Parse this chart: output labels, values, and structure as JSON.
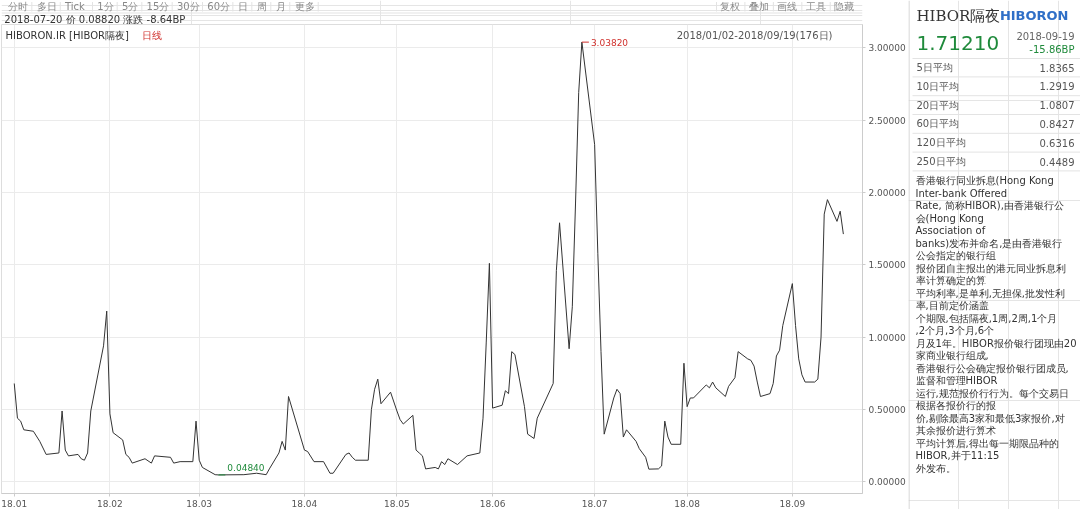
{
  "chart_data": [
    {
      "type": "other",
      "annotations": [
        "分时",
        "多日",
        "Tick",
        "1分",
        "5分",
        "15分",
        "30分",
        "60分",
        "日",
        "周",
        "月",
        "更多",
        "复权",
        "叠加",
        "画线",
        "工具",
        "隐藏"
      ]
    },
    {
      "type": "line",
      "title": "HIBORON.IR [HIBOR隔夜]",
      "subtitle": "2018-07-20 价 0.08820 涨跌 -8.64BP",
      "color": "#333333",
      "x": [
        "2018-01-02",
        "2018-01-03",
        "2018-01-04",
        "2018-01-05",
        "2018-01-08",
        "2018-01-10",
        "2018-01-12",
        "2018-01-16",
        "2018-01-17",
        "2018-01-18",
        "2018-01-19",
        "2018-01-22",
        "2018-01-23",
        "2018-01-24",
        "2018-01-25",
        "2018-01-26",
        "2018-01-30",
        "2018-01-31",
        "2018-02-01",
        "2018-02-02",
        "2018-02-05",
        "2018-02-06",
        "2018-02-07",
        "2018-02-08",
        "2018-02-12",
        "2018-02-14",
        "2018-02-15",
        "2018-02-20",
        "2018-02-21",
        "2018-02-23",
        "2018-02-27",
        "2018-02-28",
        "2018-03-01",
        "2018-03-02",
        "2018-03-06",
        "2018-03-07",
        "2018-03-15",
        "2018-03-19",
        "2018-03-22",
        "2018-03-23",
        "2018-03-26",
        "2018-03-27",
        "2018-03-28",
        "2018-03-29",
        "2018-04-03",
        "2018-04-04",
        "2018-04-06",
        "2018-04-09",
        "2018-04-11",
        "2018-04-12",
        "2018-04-16",
        "2018-04-17",
        "2018-04-18",
        "2018-04-19",
        "2018-04-23",
        "2018-04-24",
        "2018-04-25",
        "2018-04-26",
        "2018-04-27",
        "2018-04-30",
        "2018-05-02",
        "2018-05-03",
        "2018-05-04",
        "2018-05-07",
        "2018-05-08",
        "2018-05-09",
        "2018-05-10",
        "2018-05-11",
        "2018-05-14",
        "2018-05-15",
        "2018-05-16",
        "2018-05-17",
        "2018-05-18",
        "2018-05-21",
        "2018-05-24",
        "2018-05-28",
        "2018-05-29",
        "2018-05-30",
        "2018-05-31",
        "2018-06-01",
        "2018-06-04",
        "2018-06-05",
        "2018-06-06",
        "2018-06-07",
        "2018-06-08",
        "2018-06-11",
        "2018-06-12",
        "2018-06-14",
        "2018-06-15",
        "2018-06-20",
        "2018-06-21",
        "2018-06-22",
        "2018-06-25",
        "2018-06-26",
        "2018-06-27",
        "2018-06-28",
        "2018-06-29",
        "2018-07-03",
        "2018-07-04",
        "2018-07-05",
        "2018-07-06",
        "2018-07-09",
        "2018-07-10",
        "2018-07-11",
        "2018-07-12",
        "2018-07-13",
        "2018-07-16",
        "2018-07-17",
        "2018-07-19",
        "2018-07-20",
        "2018-07-23",
        "2018-07-24",
        "2018-07-25",
        "2018-07-26",
        "2018-07-27",
        "2018-07-30",
        "2018-07-31",
        "2018-08-01",
        "2018-08-02",
        "2018-08-03",
        "2018-08-07",
        "2018-08-08",
        "2018-08-09",
        "2018-08-10",
        "2018-08-13",
        "2018-08-14",
        "2018-08-15",
        "2018-08-16",
        "2018-08-17",
        "2018-08-20",
        "2018-08-21",
        "2018-08-22",
        "2018-08-23",
        "2018-08-24",
        "2018-08-27",
        "2018-08-28",
        "2018-08-29",
        "2018-08-30",
        "2018-08-31",
        "2018-09-03",
        "2018-09-04",
        "2018-09-05",
        "2018-09-06",
        "2018-09-07",
        "2018-09-10",
        "2018-09-11",
        "2018-09-12",
        "2018-09-13",
        "2018-09-14",
        "2018-09-17",
        "2018-09-18",
        "2018-09-19"
      ],
      "values": [
        0.68,
        0.44,
        0.42,
        0.36,
        0.35,
        0.28,
        0.19,
        0.2,
        0.49,
        0.22,
        0.18,
        0.19,
        0.16,
        0.15,
        0.2,
        0.49,
        0.94,
        1.18,
        0.47,
        0.34,
        0.29,
        0.19,
        0.17,
        0.13,
        0.16,
        0.13,
        0.18,
        0.17,
        0.13,
        0.14,
        0.14,
        0.42,
        0.15,
        0.1,
        0.05,
        0.0484,
        0.05,
        0.06,
        0.05,
        0.09,
        0.2,
        0.28,
        0.22,
        0.59,
        0.22,
        0.21,
        0.14,
        0.14,
        0.06,
        0.06,
        0.19,
        0.2,
        0.17,
        0.15,
        0.15,
        0.5,
        0.64,
        0.71,
        0.54,
        0.62,
        0.49,
        0.43,
        0.4,
        0.46,
        0.22,
        0.2,
        0.18,
        0.09,
        0.1,
        0.09,
        0.14,
        0.12,
        0.16,
        0.12,
        0.18,
        0.2,
        0.44,
        0.96,
        1.51,
        0.51,
        0.53,
        0.63,
        0.61,
        0.9,
        0.88,
        0.52,
        0.33,
        0.3,
        0.44,
        0.68,
        1.46,
        1.79,
        0.92,
        1.21,
        1.92,
        2.69,
        3.0382,
        2.33,
        1.58,
        0.9,
        0.33,
        0.58,
        0.64,
        0.61,
        0.31,
        0.36,
        0.28,
        0.23,
        0.17,
        0.0882,
        0.09,
        0.11,
        0.42,
        0.31,
        0.26,
        0.26,
        0.82,
        0.52,
        0.58,
        0.58,
        0.67,
        0.65,
        0.69,
        0.65,
        0.59,
        0.66,
        0.69,
        0.72,
        0.9,
        0.85,
        0.84,
        0.8,
        0.69,
        0.59,
        0.61,
        0.68,
        0.87,
        0.91,
        1.08,
        1.37,
        1.08,
        0.85,
        0.74,
        0.69,
        0.69,
        0.71,
        1.0,
        1.85,
        1.95,
        1.8,
        1.87,
        1.7121
      ],
      "xlim": [
        "2017-12-29",
        "2018-09-25"
      ],
      "xticks": [
        {
          "value": "2018-01-02",
          "label": "18.01"
        },
        {
          "value": "2018-02-01",
          "label": "18.02"
        },
        {
          "value": "2018-03-01",
          "label": "18.03"
        },
        {
          "value": "2018-04-03",
          "label": "18.04"
        },
        {
          "value": "2018-05-02",
          "label": "18.05"
        },
        {
          "value": "2018-06-01",
          "label": "18.06"
        },
        {
          "value": "2018-07-03",
          "label": "18.07"
        },
        {
          "value": "2018-08-01",
          "label": "18.08"
        },
        {
          "value": "2018-09-03",
          "label": "18.09"
        }
      ],
      "ylim": [
        -0.08,
        3.16
      ],
      "yticks": [
        {
          "value": 0,
          "label": "0.00000"
        },
        {
          "value": 0.5,
          "label": "0.50000"
        },
        {
          "value": 1,
          "label": "1.00000"
        },
        {
          "value": 1.5,
          "label": "1.50000"
        },
        {
          "value": 2,
          "label": "2.00000"
        },
        {
          "value": 2.5,
          "label": "2.50000"
        },
        {
          "value": 3,
          "label": "3.00000"
        }
      ],
      "grid": true,
      "annotations": [
        "2018/01/02-2018/09/19(176日)",
        "日线",
        {
          "text": "3.03820",
          "x": "2018-06-29",
          "y": 3.0382
        },
        {
          "text": "0.04840",
          "x": "2018-03-07",
          "y": 0.0484
        }
      ]
    },
    {
      "type": "other",
      "title": "HIBOR隔夜",
      "subtitle": "HIBORON",
      "annotations": [
        "1.71210",
        "2018-09-19",
        "-15.86BP"
      ],
      "categories": [
        "5日平均",
        "10日平均",
        "20日平均",
        "60日平均",
        "120日平均",
        "250日平均"
      ],
      "values": [
        1.8365,
        1.2919,
        1.0807,
        0.8427,
        0.6316,
        0.4489
      ],
      "data_labels": true
    },
    {
      "type": "other",
      "annotations": [
        "香港银行同业拆息(Hong Kong Inter-bank Offered",
        "Rate, 简称HIBOR),由香港银行公会(Hong Kong",
        "Association of",
        "banks)发布并命名,是由香港银行公会指定的银行组",
        "报价团自主报出的港元同业拆息利率计算确定的算",
        "平均利率,是单利,无担保,批发性利率,目前定价涵盖",
        "个期限,包括隔夜,1周,2周,1个月,2个月,3个月,6个",
        "月及1年。HIBOR报价银行团现由20家商业银行组成,",
        "香港银行公会确定报价银行团成员,监督和管理HIBOR",
        "运行,规范报价行行为。每个交易日根据各报价行的报",
        "价,剔除最高3家和最低3家报价,对其余报价进行算术",
        "平均计算后,得出每一期限品种的HIBOR,并于11:15",
        "外发布。"
      ]
    }
  ]
}
